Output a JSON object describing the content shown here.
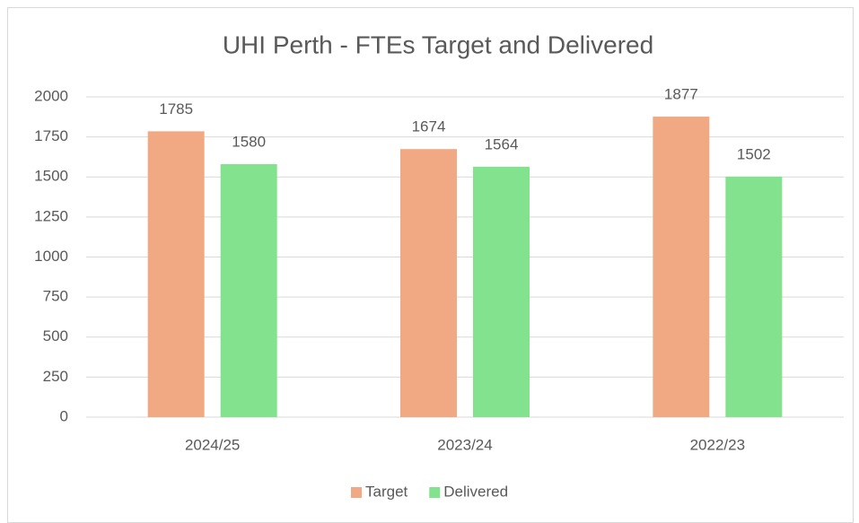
{
  "chart_data": {
    "type": "bar",
    "title": "UHI Perth - FTEs Target and Delivered",
    "categories": [
      "2024/25",
      "2023/24",
      "2022/23"
    ],
    "series": [
      {
        "name": "Target",
        "color": "#F1A983",
        "values": [
          1785,
          1674,
          1877
        ]
      },
      {
        "name": "Delivered",
        "color": "#83E28E",
        "values": [
          1580,
          1564,
          1502
        ]
      }
    ],
    "ylim": [
      0,
      2000
    ],
    "yticks": [
      0,
      250,
      500,
      750,
      1000,
      1250,
      1500,
      1750,
      2000
    ],
    "grid": true,
    "legend": "bottom"
  }
}
